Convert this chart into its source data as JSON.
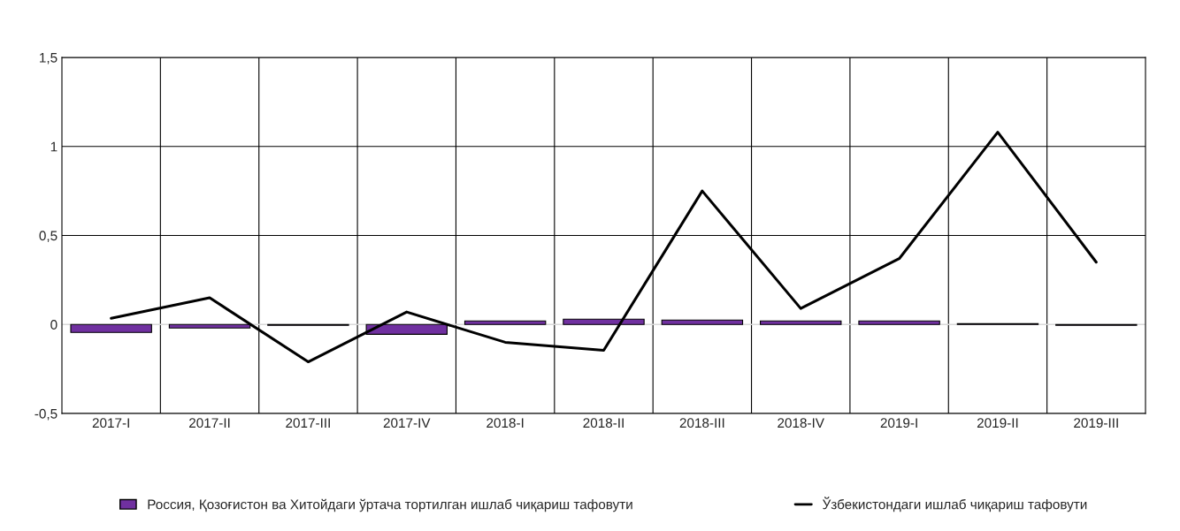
{
  "chart_data": {
    "type": "bar",
    "categories": [
      "2017-I",
      "2017-II",
      "2017-III",
      "2017-IV",
      "2018-I",
      "2018-II",
      "2018-III",
      "2018-IV",
      "2019-I",
      "2019-II",
      "2019-III"
    ],
    "series": [
      {
        "name": "Россия, Қозоғистон ва Хитойдаги ўртача тортилган ишлаб чиқариш тафовути",
        "color": "#7030a0",
        "values": [
          -0.045,
          -0.02,
          -0.005,
          -0.055,
          0.02,
          0.03,
          0.025,
          0.02,
          0.02,
          0.005,
          -0.005
        ]
      },
      {
        "name": "Ўзбекистондаги ишлаб чиқариш тафовути",
        "color": "#000000",
        "type": "line",
        "values": [
          0.035,
          0.15,
          -0.21,
          0.07,
          -0.1,
          -0.145,
          0.75,
          0.09,
          0.37,
          1.08,
          0.35
        ]
      }
    ],
    "ylim": [
      -0.5,
      1.5
    ],
    "yticks": [
      {
        "value": -0.5,
        "label": "-0,5"
      },
      0,
      {
        "value": 0.5,
        "label": "0,5"
      },
      1,
      {
        "value": 1.5,
        "label": "1,5"
      }
    ],
    "grid": true,
    "legend": "bottom"
  }
}
